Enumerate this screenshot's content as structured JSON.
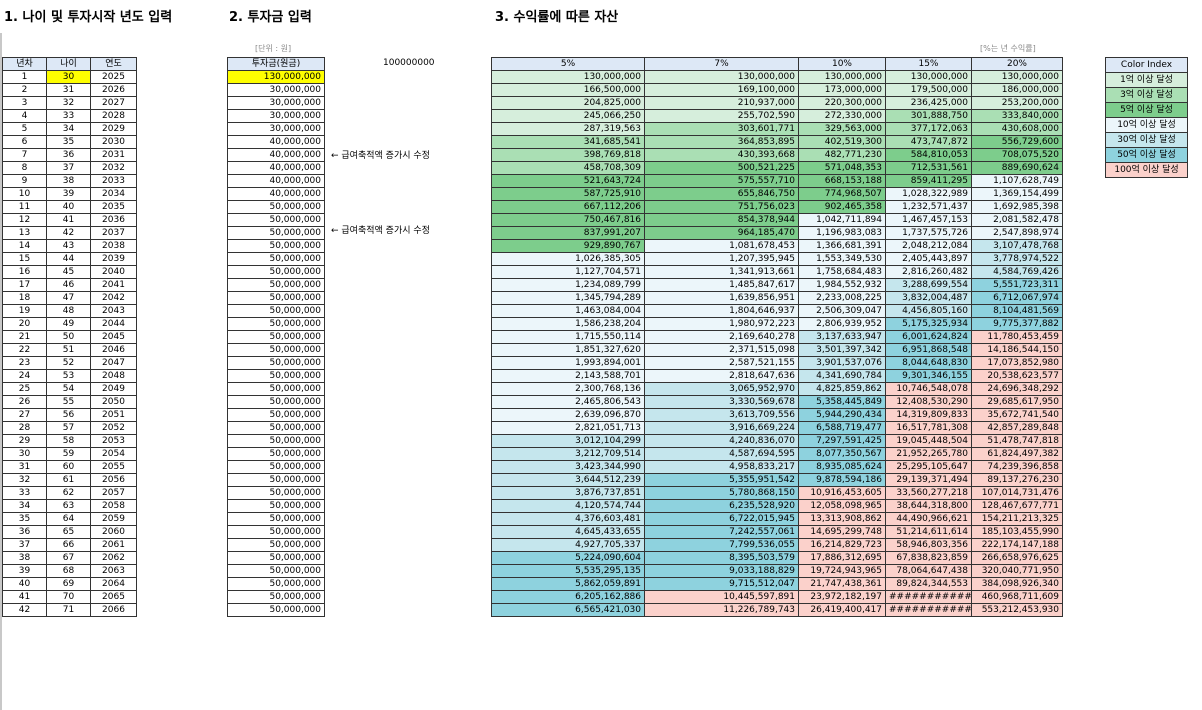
{
  "sections": {
    "s1": "1. 나이 및 투자시작 년도 입력",
    "s2": "2. 투자금 입력",
    "s3": "3. 수익률에 따른 자산"
  },
  "unit_note": "[단위 : 원]",
  "pct_note": "[%는 년 수익률]",
  "big_number": "100000000",
  "memo": "← 급여축적액 증가시 수정",
  "headers": {
    "left": [
      "년차",
      "나이",
      "연도"
    ],
    "invest": "투자금(원금)",
    "rates": [
      "5%",
      "7%",
      "10%",
      "15%",
      "20%"
    ]
  },
  "legend": {
    "title": "Color Index",
    "items": [
      "1억 이상 달성",
      "3억 이상 달성",
      "5억 이상 달성",
      "10억 이상 달성",
      "30억 이상 달성",
      "50억 이상 달성",
      "100억 이상 달성"
    ],
    "colors": [
      "#d6eedc",
      "#aadfb4",
      "#7dcd8c",
      "#ecf6fa",
      "#c5e6ed",
      "#8ed2de",
      "#fbd1cb"
    ]
  },
  "rows": [
    {
      "n": "1",
      "age": "30",
      "year": "2025",
      "inv": "130,000,000",
      "v": [
        "130,000,000",
        "130,000,000",
        "130,000,000",
        "130,000,000",
        "130,000,000"
      ]
    },
    {
      "n": "2",
      "age": "31",
      "year": "2026",
      "inv": "30,000,000",
      "v": [
        "166,500,000",
        "169,100,000",
        "173,000,000",
        "179,500,000",
        "186,000,000"
      ]
    },
    {
      "n": "3",
      "age": "32",
      "year": "2027",
      "inv": "30,000,000",
      "v": [
        "204,825,000",
        "210,937,000",
        "220,300,000",
        "236,425,000",
        "253,200,000"
      ]
    },
    {
      "n": "4",
      "age": "33",
      "year": "2028",
      "inv": "30,000,000",
      "v": [
        "245,066,250",
        "255,702,590",
        "272,330,000",
        "301,888,750",
        "333,840,000"
      ]
    },
    {
      "n": "5",
      "age": "34",
      "year": "2029",
      "inv": "30,000,000",
      "v": [
        "287,319,563",
        "303,601,771",
        "329,563,000",
        "377,172,063",
        "430,608,000"
      ]
    },
    {
      "n": "6",
      "age": "35",
      "year": "2030",
      "inv": "40,000,000",
      "v": [
        "341,685,541",
        "364,853,895",
        "402,519,300",
        "473,747,872",
        "556,729,600"
      ]
    },
    {
      "n": "7",
      "age": "36",
      "year": "2031",
      "inv": "40,000,000",
      "v": [
        "398,769,818",
        "430,393,668",
        "482,771,230",
        "584,810,053",
        "708,075,520"
      ]
    },
    {
      "n": "8",
      "age": "37",
      "year": "2032",
      "inv": "40,000,000",
      "v": [
        "458,708,309",
        "500,521,225",
        "571,048,353",
        "712,531,561",
        "889,690,624"
      ]
    },
    {
      "n": "9",
      "age": "38",
      "year": "2033",
      "inv": "40,000,000",
      "v": [
        "521,643,724",
        "575,557,710",
        "668,153,188",
        "859,411,295",
        "1,107,628,749"
      ]
    },
    {
      "n": "10",
      "age": "39",
      "year": "2034",
      "inv": "40,000,000",
      "v": [
        "587,725,910",
        "655,846,750",
        "774,968,507",
        "1,028,322,989",
        "1,369,154,499"
      ]
    },
    {
      "n": "11",
      "age": "40",
      "year": "2035",
      "inv": "50,000,000",
      "v": [
        "667,112,206",
        "751,756,023",
        "902,465,358",
        "1,232,571,437",
        "1,692,985,398"
      ]
    },
    {
      "n": "12",
      "age": "41",
      "year": "2036",
      "inv": "50,000,000",
      "v": [
        "750,467,816",
        "854,378,944",
        "1,042,711,894",
        "1,467,457,153",
        "2,081,582,478"
      ]
    },
    {
      "n": "13",
      "age": "42",
      "year": "2037",
      "inv": "50,000,000",
      "v": [
        "837,991,207",
        "964,185,470",
        "1,196,983,083",
        "1,737,575,726",
        "2,547,898,974"
      ]
    },
    {
      "n": "14",
      "age": "43",
      "year": "2038",
      "inv": "50,000,000",
      "v": [
        "929,890,767",
        "1,081,678,453",
        "1,366,681,391",
        "2,048,212,084",
        "3,107,478,768"
      ]
    },
    {
      "n": "15",
      "age": "44",
      "year": "2039",
      "inv": "50,000,000",
      "v": [
        "1,026,385,305",
        "1,207,395,945",
        "1,553,349,530",
        "2,405,443,897",
        "3,778,974,522"
      ]
    },
    {
      "n": "16",
      "age": "45",
      "year": "2040",
      "inv": "50,000,000",
      "v": [
        "1,127,704,571",
        "1,341,913,661",
        "1,758,684,483",
        "2,816,260,482",
        "4,584,769,426"
      ]
    },
    {
      "n": "17",
      "age": "46",
      "year": "2041",
      "inv": "50,000,000",
      "v": [
        "1,234,089,799",
        "1,485,847,617",
        "1,984,552,932",
        "3,288,699,554",
        "5,551,723,311"
      ]
    },
    {
      "n": "18",
      "age": "47",
      "year": "2042",
      "inv": "50,000,000",
      "v": [
        "1,345,794,289",
        "1,639,856,951",
        "2,233,008,225",
        "3,832,004,487",
        "6,712,067,974"
      ]
    },
    {
      "n": "19",
      "age": "48",
      "year": "2043",
      "inv": "50,000,000",
      "v": [
        "1,463,084,004",
        "1,804,646,937",
        "2,506,309,047",
        "4,456,805,160",
        "8,104,481,569"
      ]
    },
    {
      "n": "20",
      "age": "49",
      "year": "2044",
      "inv": "50,000,000",
      "v": [
        "1,586,238,204",
        "1,980,972,223",
        "2,806,939,952",
        "5,175,325,934",
        "9,775,377,882"
      ]
    },
    {
      "n": "21",
      "age": "50",
      "year": "2045",
      "inv": "50,000,000",
      "v": [
        "1,715,550,114",
        "2,169,640,278",
        "3,137,633,947",
        "6,001,624,824",
        "11,780,453,459"
      ]
    },
    {
      "n": "22",
      "age": "51",
      "year": "2046",
      "inv": "50,000,000",
      "v": [
        "1,851,327,620",
        "2,371,515,098",
        "3,501,397,342",
        "6,951,868,548",
        "14,186,544,150"
      ]
    },
    {
      "n": "23",
      "age": "52",
      "year": "2047",
      "inv": "50,000,000",
      "v": [
        "1,993,894,001",
        "2,587,521,155",
        "3,901,537,076",
        "8,044,648,830",
        "17,073,852,980"
      ]
    },
    {
      "n": "24",
      "age": "53",
      "year": "2048",
      "inv": "50,000,000",
      "v": [
        "2,143,588,701",
        "2,818,647,636",
        "4,341,690,784",
        "9,301,346,155",
        "20,538,623,577"
      ]
    },
    {
      "n": "25",
      "age": "54",
      "year": "2049",
      "inv": "50,000,000",
      "v": [
        "2,300,768,136",
        "3,065,952,970",
        "4,825,859,862",
        "10,746,548,078",
        "24,696,348,292"
      ]
    },
    {
      "n": "26",
      "age": "55",
      "year": "2050",
      "inv": "50,000,000",
      "v": [
        "2,465,806,543",
        "3,330,569,678",
        "5,358,445,849",
        "12,408,530,290",
        "29,685,617,950"
      ]
    },
    {
      "n": "27",
      "age": "56",
      "year": "2051",
      "inv": "50,000,000",
      "v": [
        "2,639,096,870",
        "3,613,709,556",
        "5,944,290,434",
        "14,319,809,833",
        "35,672,741,540"
      ]
    },
    {
      "n": "28",
      "age": "57",
      "year": "2052",
      "inv": "50,000,000",
      "v": [
        "2,821,051,713",
        "3,916,669,224",
        "6,588,719,477",
        "16,517,781,308",
        "42,857,289,848"
      ]
    },
    {
      "n": "29",
      "age": "58",
      "year": "2053",
      "inv": "50,000,000",
      "v": [
        "3,012,104,299",
        "4,240,836,070",
        "7,297,591,425",
        "19,045,448,504",
        "51,478,747,818"
      ]
    },
    {
      "n": "30",
      "age": "59",
      "year": "2054",
      "inv": "50,000,000",
      "v": [
        "3,212,709,514",
        "4,587,694,595",
        "8,077,350,567",
        "21,952,265,780",
        "61,824,497,382"
      ]
    },
    {
      "n": "31",
      "age": "60",
      "year": "2055",
      "inv": "50,000,000",
      "v": [
        "3,423,344,990",
        "4,958,833,217",
        "8,935,085,624",
        "25,295,105,647",
        "74,239,396,858"
      ]
    },
    {
      "n": "32",
      "age": "61",
      "year": "2056",
      "inv": "50,000,000",
      "v": [
        "3,644,512,239",
        "5,355,951,542",
        "9,878,594,186",
        "29,139,371,494",
        "89,137,276,230"
      ]
    },
    {
      "n": "33",
      "age": "62",
      "year": "2057",
      "inv": "50,000,000",
      "v": [
        "3,876,737,851",
        "5,780,868,150",
        "10,916,453,605",
        "33,560,277,218",
        "107,014,731,476"
      ]
    },
    {
      "n": "34",
      "age": "63",
      "year": "2058",
      "inv": "50,000,000",
      "v": [
        "4,120,574,744",
        "6,235,528,920",
        "12,058,098,965",
        "38,644,318,800",
        "128,467,677,771"
      ]
    },
    {
      "n": "35",
      "age": "64",
      "year": "2059",
      "inv": "50,000,000",
      "v": [
        "4,376,603,481",
        "6,722,015,945",
        "13,313,908,862",
        "44,490,966,621",
        "154,211,213,325"
      ]
    },
    {
      "n": "36",
      "age": "65",
      "year": "2060",
      "inv": "50,000,000",
      "v": [
        "4,645,433,655",
        "7,242,557,061",
        "14,695,299,748",
        "51,214,611,614",
        "185,103,455,990"
      ]
    },
    {
      "n": "37",
      "age": "66",
      "year": "2061",
      "inv": "50,000,000",
      "v": [
        "4,927,705,337",
        "7,799,536,055",
        "16,214,829,723",
        "58,946,803,356",
        "222,174,147,188"
      ]
    },
    {
      "n": "38",
      "age": "67",
      "year": "2062",
      "inv": "50,000,000",
      "v": [
        "5,224,090,604",
        "8,395,503,579",
        "17,886,312,695",
        "67,838,823,859",
        "266,658,976,625"
      ]
    },
    {
      "n": "39",
      "age": "68",
      "year": "2063",
      "inv": "50,000,000",
      "v": [
        "5,535,295,135",
        "9,033,188,829",
        "19,724,943,965",
        "78,064,647,438",
        "320,040,771,950"
      ]
    },
    {
      "n": "40",
      "age": "69",
      "year": "2064",
      "inv": "50,000,000",
      "v": [
        "5,862,059,891",
        "9,715,512,047",
        "21,747,438,361",
        "89,824,344,553",
        "384,098,926,340"
      ]
    },
    {
      "n": "41",
      "age": "70",
      "year": "2065",
      "inv": "50,000,000",
      "v": [
        "6,205,162,886",
        "10,445,597,891",
        "23,972,182,197",
        "###########",
        "460,968,711,609"
      ]
    },
    {
      "n": "42",
      "age": "71",
      "year": "2066",
      "inv": "50,000,000",
      "v": [
        "6,565,421,030",
        "11,226,789,743",
        "26,419,400,417",
        "###########",
        "553,212,453,930"
      ]
    }
  ]
}
